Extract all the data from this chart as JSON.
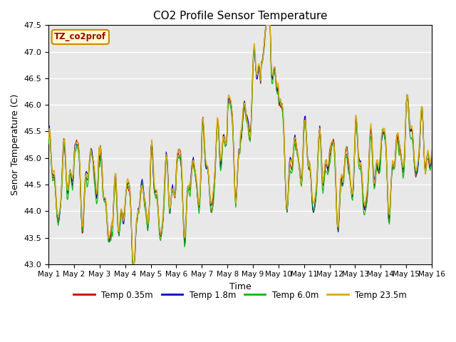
{
  "title": "CO2 Profile Sensor Temperature",
  "xlabel": "Time",
  "ylabel": "Senor Temperature (C)",
  "ylim": [
    43.0,
    47.5
  ],
  "yticks": [
    43.0,
    43.5,
    44.0,
    44.5,
    45.0,
    45.5,
    46.0,
    46.5,
    47.0,
    47.5
  ],
  "bg_color": "#e8e8e8",
  "legend_label": "TZ_co2prof",
  "legend_box_color": "#ffffcc",
  "legend_box_edge": "#cc8800",
  "series_colors": [
    "#cc0000",
    "#0000cc",
    "#00bb00",
    "#ddaa00"
  ],
  "series_labels": [
    "Temp 0.35m",
    "Temp 1.8m",
    "Temp 6.0m",
    "Temp 23.5m"
  ],
  "n_points": 480,
  "x_start": 0,
  "x_end": 15,
  "xtick_positions": [
    0,
    1,
    2,
    3,
    4,
    5,
    6,
    7,
    8,
    9,
    10,
    11,
    12,
    13,
    14,
    15
  ],
  "xtick_labels": [
    "May 1",
    "May 2",
    "May 3",
    "May 4",
    "May 5",
    "May 6",
    "May 7",
    "May 8",
    "May 9",
    "May 10",
    "May 11",
    "May 12",
    "May 13",
    "May 14",
    "May 15",
    "May 16"
  ],
  "figwidth": 6.4,
  "figheight": 4.8,
  "dpi": 100
}
